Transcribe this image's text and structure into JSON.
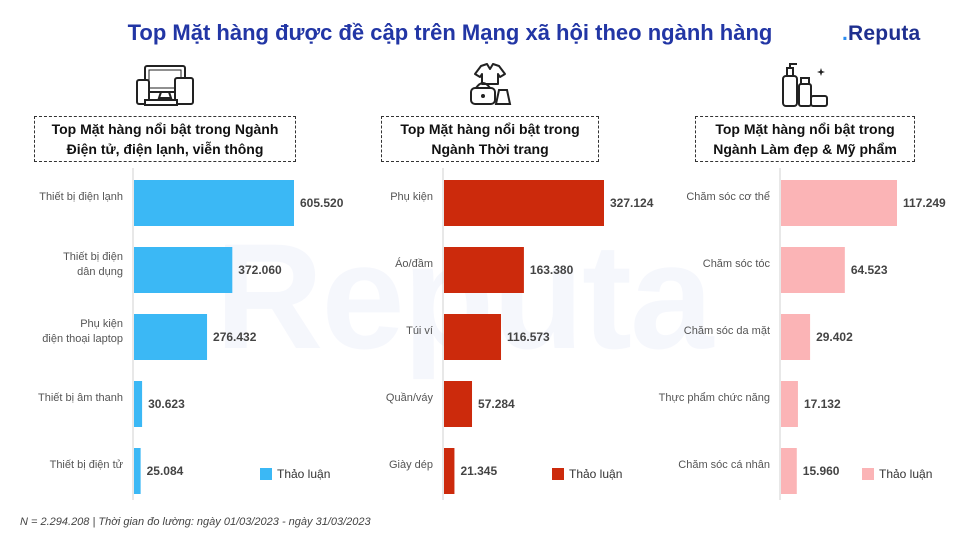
{
  "title": "Top Mặt hàng được đề cập trên Mạng xã hội theo ngành hàng",
  "logo": {
    "dot": ".",
    "text": "Reputa"
  },
  "watermark": "Reputa",
  "footer": "N = 2.294.208 | Thời gian đo lường: ngày 01/03/2023 - ngày 31/03/2023",
  "panels": [
    {
      "header_line1": "Top Mặt hàng nổi bật trong Ngành",
      "header_line2": "Điện tử, điện lạnh, viễn thông",
      "icon": "electronics-devices-icon"
    },
    {
      "header_line1": "Top Mặt hàng nổi bật trong",
      "header_line2": "Ngành Thời trang",
      "icon": "fashion-clothing-icon"
    },
    {
      "header_line1": "Top Mặt hàng nổi bật trong",
      "header_line2": "Ngành Làm đẹp & Mỹ phẩm",
      "icon": "cosmetics-bottles-icon"
    }
  ],
  "chart_data": [
    {
      "type": "bar",
      "orientation": "horizontal",
      "categories": [
        "Thiết bị điện lạnh",
        "Thiết bị điện\ndân dụng",
        "Phụ kiện\nđiện thoại laptop",
        "Thiết bị âm thanh",
        "Thiết bị điện tử"
      ],
      "series": [
        {
          "name": "Thảo luận",
          "values": [
            605520,
            372060,
            276432,
            30623,
            25084
          ]
        }
      ],
      "data_labels": [
        "605.520",
        "372.060",
        "276.432",
        "30.623",
        "25.084"
      ],
      "color": "#3bb8f5",
      "legend": "bottom-right"
    },
    {
      "type": "bar",
      "orientation": "horizontal",
      "categories": [
        "Phụ kiện",
        "Áo/đầm",
        "Túi ví",
        "Quần/váy",
        "Giày dép"
      ],
      "series": [
        {
          "name": "Thảo luận",
          "values": [
            327124,
            163380,
            116573,
            57284,
            21345
          ]
        }
      ],
      "data_labels": [
        "327.124",
        "163.380",
        "116.573",
        "57.284",
        "21.345"
      ],
      "color": "#cc2a0c",
      "legend": "bottom-right"
    },
    {
      "type": "bar",
      "orientation": "horizontal",
      "categories": [
        "Chăm sóc cơ thể",
        "Chăm sóc tóc",
        "Chăm sóc da mặt",
        "Thực phẩm chức năng",
        "Chăm sóc cá nhân"
      ],
      "series": [
        {
          "name": "Thảo luận",
          "values": [
            117249,
            64523,
            29402,
            17132,
            15960
          ]
        }
      ],
      "data_labels": [
        "117.249",
        "64.523",
        "29.402",
        "17.132",
        "15.960"
      ],
      "color": "#fbb4b6",
      "legend": "bottom-right"
    }
  ]
}
